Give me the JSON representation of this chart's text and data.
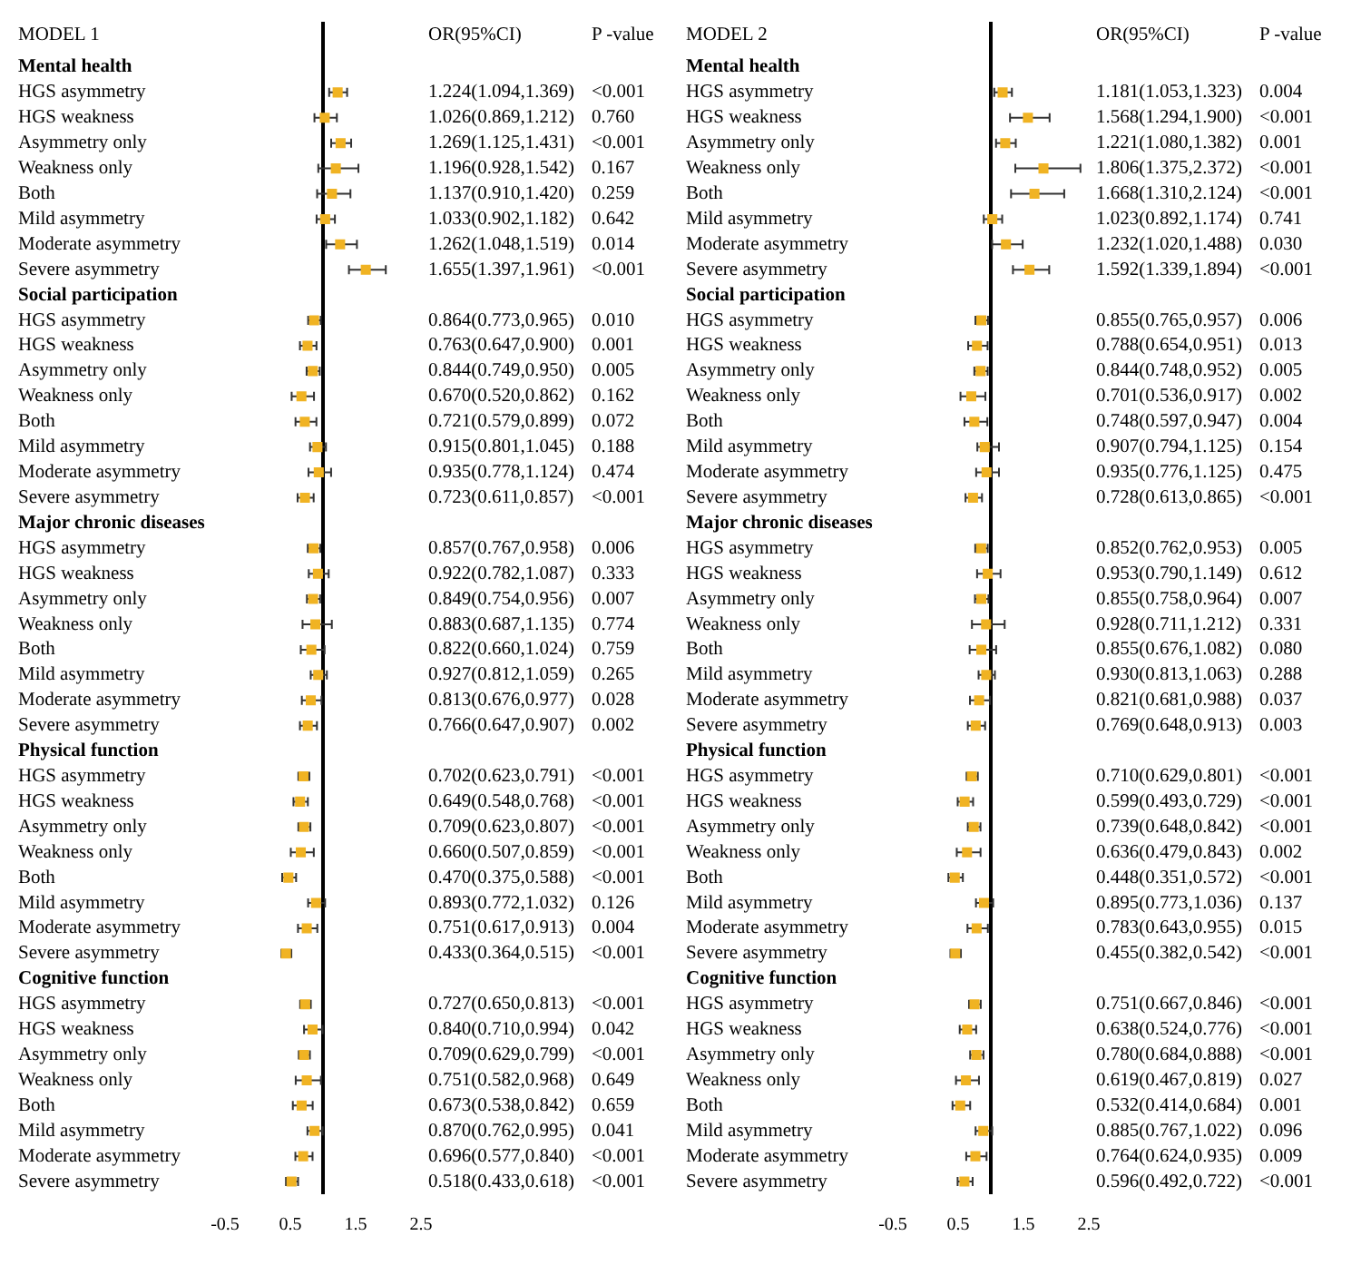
{
  "chart_data": [
    {
      "type": "scatter",
      "title": "MODEL 1",
      "orientation": "horizontal",
      "marker": "square",
      "color": "#f0b323",
      "categories": [
        "Mental health",
        "HGS asymmetry",
        "HGS weakness",
        "Asymmetry only",
        "Weakness only",
        "Both",
        "Mild asymmetry",
        "Moderate asymmetry",
        "Severe asymmetry",
        "Social participation",
        "HGS asymmetry",
        "HGS weakness",
        "Asymmetry only",
        "Weakness only",
        "Both",
        "Mild asymmetry",
        "Moderate asymmetry",
        "Severe asymmetry",
        "Major chronic diseases",
        "HGS asymmetry",
        "HGS weakness",
        "Asymmetry only",
        "Weakness only",
        "Both",
        "Mild asymmetry",
        "Moderate asymmetry",
        "Severe asymmetry",
        "Physical function",
        "HGS asymmetry",
        "HGS weakness",
        "Asymmetry only",
        "Weakness only",
        "Both",
        "Mild asymmetry",
        "Moderate asymmetry",
        "Severe asymmetry",
        "Cognitive function",
        "HGS asymmetry",
        "HGS weakness",
        "Asymmetry only",
        "Weakness only",
        "Both",
        "Mild asymmetry",
        "Moderate asymmetry",
        "Severe asymmetry"
      ],
      "values": [
        null,
        1.224,
        1.026,
        1.269,
        1.196,
        1.137,
        1.033,
        1.262,
        1.655,
        null,
        0.864,
        0.763,
        0.844,
        0.67,
        0.721,
        0.915,
        0.935,
        0.723,
        null,
        0.857,
        0.922,
        0.849,
        0.883,
        0.822,
        0.927,
        0.813,
        0.766,
        null,
        0.702,
        0.649,
        0.709,
        0.66,
        0.47,
        0.893,
        0.751,
        0.433,
        null,
        0.727,
        0.84,
        0.709,
        0.751,
        0.673,
        0.87,
        0.696,
        0.518
      ],
      "errors": [
        null,
        [
          1.094,
          1.369
        ],
        [
          0.869,
          1.212
        ],
        [
          1.125,
          1.431
        ],
        [
          0.928,
          1.542
        ],
        [
          0.91,
          1.42
        ],
        [
          0.902,
          1.182
        ],
        [
          1.048,
          1.519
        ],
        [
          1.397,
          1.961
        ],
        null,
        [
          0.773,
          0.965
        ],
        [
          0.647,
          0.9
        ],
        [
          0.749,
          0.95
        ],
        [
          0.52,
          0.862
        ],
        [
          0.579,
          0.899
        ],
        [
          0.801,
          1.045
        ],
        [
          0.778,
          1.124
        ],
        [
          0.611,
          0.857
        ],
        null,
        [
          0.767,
          0.958
        ],
        [
          0.782,
          1.087
        ],
        [
          0.754,
          0.956
        ],
        [
          0.687,
          1.135
        ],
        [
          0.66,
          1.024
        ],
        [
          0.812,
          1.059
        ],
        [
          0.676,
          0.977
        ],
        [
          0.647,
          0.907
        ],
        null,
        [
          0.623,
          0.791
        ],
        [
          0.548,
          0.768
        ],
        [
          0.623,
          0.807
        ],
        [
          0.507,
          0.859
        ],
        [
          0.375,
          0.588
        ],
        [
          0.772,
          1.032
        ],
        [
          0.617,
          0.913
        ],
        [
          0.364,
          0.515
        ],
        null,
        [
          0.65,
          0.813
        ],
        [
          0.71,
          0.994
        ],
        [
          0.629,
          0.799
        ],
        [
          0.582,
          0.968
        ],
        [
          0.538,
          0.842
        ],
        [
          0.762,
          0.995
        ],
        [
          0.577,
          0.84
        ],
        [
          0.433,
          0.618
        ]
      ],
      "value_labels": [
        null,
        "1.224(1.094,1.369)",
        "1.026(0.869,1.212)",
        "1.269(1.125,1.431)",
        "1.196(0.928,1.542)",
        "1.137(0.910,1.420)",
        "1.033(0.902,1.182)",
        "1.262(1.048,1.519)",
        "1.655(1.397,1.961)",
        null,
        "0.864(0.773,0.965)",
        "0.763(0.647,0.900)",
        "0.844(0.749,0.950)",
        "0.670(0.520,0.862)",
        "0.721(0.579,0.899)",
        "0.915(0.801,1.045)",
        "0.935(0.778,1.124)",
        "0.723(0.611,0.857)",
        null,
        "0.857(0.767,0.958)",
        "0.922(0.782,1.087)",
        "0.849(0.754,0.956)",
        "0.883(0.687,1.135)",
        "0.822(0.660,1.024)",
        "0.927(0.812,1.059)",
        "0.813(0.676,0.977)",
        "0.766(0.647,0.907)",
        null,
        "0.702(0.623,0.791)",
        "0.649(0.548,0.768)",
        "0.709(0.623,0.807)",
        "0.660(0.507,0.859)",
        "0.470(0.375,0.588)",
        "0.893(0.772,1.032)",
        "0.751(0.617,0.913)",
        "0.433(0.364,0.515)",
        null,
        "0.727(0.650,0.813)",
        "0.840(0.710,0.994)",
        "0.709(0.629,0.799)",
        "0.751(0.582,0.968)",
        "0.673(0.538,0.842)",
        "0.870(0.762,0.995)",
        "0.696(0.577,0.840)",
        "0.518(0.433,0.618)"
      ],
      "annotations": [
        "OR(95%CI)",
        "P -value",
        "<0.001",
        "0.760",
        "<0.001",
        "0.167",
        "0.259",
        "0.642",
        "0.014",
        "<0.001",
        "0.010",
        "0.001",
        "0.005",
        "0.162",
        "0.072",
        "0.188",
        "0.474",
        "<0.001",
        "0.006",
        "0.333",
        "0.007",
        "0.774",
        "0.759",
        "0.265",
        "0.028",
        "0.002",
        "<0.001",
        "<0.001",
        "<0.001",
        "<0.001",
        "<0.001",
        "0.126",
        "0.004",
        "<0.001",
        "<0.001",
        "0.042",
        "<0.001",
        "0.649",
        "0.659",
        "0.041",
        "<0.001",
        "<0.001"
      ],
      "xlim": [
        -0.5,
        2.5
      ],
      "xticks": [
        -0.5,
        0.5,
        1.5,
        2.5
      ],
      "ref_lines": [
        {
          "axis": "x",
          "value": 1,
          "color": "#000000"
        }
      ]
    },
    {
      "type": "scatter",
      "title": "MODEL 2",
      "orientation": "horizontal",
      "marker": "square",
      "color": "#f0b323",
      "categories": [
        "Mental health",
        "HGS asymmetry",
        "HGS weakness",
        "Asymmetry only",
        "Weakness only",
        "Both",
        "Mild asymmetry",
        "Moderate asymmetry",
        "Severe asymmetry",
        "Social participation",
        "HGS asymmetry",
        "HGS weakness",
        "Asymmetry only",
        "Weakness only",
        "Both",
        "Mild asymmetry",
        "Moderate asymmetry",
        "Severe asymmetry",
        "Major chronic diseases",
        "HGS asymmetry",
        "HGS weakness",
        "Asymmetry only",
        "Weakness only",
        "Both",
        "Mild asymmetry",
        "Moderate asymmetry",
        "Severe asymmetry",
        "Physical function",
        "HGS asymmetry",
        "HGS weakness",
        "Asymmetry only",
        "Weakness only",
        "Both",
        "Mild asymmetry",
        "Moderate asymmetry",
        "Severe asymmetry",
        "Cognitive function",
        "HGS asymmetry",
        "HGS weakness",
        "Asymmetry only",
        "Weakness only",
        "Both",
        "Mild asymmetry",
        "Moderate asymmetry",
        "Severe asymmetry"
      ],
      "values": [
        null,
        1.181,
        1.568,
        1.221,
        1.806,
        1.668,
        1.023,
        1.232,
        1.592,
        null,
        0.855,
        0.788,
        0.844,
        0.701,
        0.748,
        0.907,
        0.935,
        0.728,
        null,
        0.852,
        0.953,
        0.855,
        0.928,
        0.855,
        0.93,
        0.821,
        0.769,
        null,
        0.71,
        0.599,
        0.739,
        0.636,
        0.448,
        0.895,
        0.783,
        0.455,
        null,
        0.751,
        0.638,
        0.78,
        0.619,
        0.532,
        0.885,
        0.764,
        0.596
      ],
      "errors": [
        null,
        [
          1.053,
          1.323
        ],
        [
          1.294,
          1.9
        ],
        [
          1.08,
          1.382
        ],
        [
          1.375,
          2.372
        ],
        [
          1.31,
          2.124
        ],
        [
          0.892,
          1.174
        ],
        [
          1.02,
          1.488
        ],
        [
          1.339,
          1.894
        ],
        null,
        [
          0.765,
          0.957
        ],
        [
          0.654,
          0.951
        ],
        [
          0.748,
          0.952
        ],
        [
          0.536,
          0.917
        ],
        [
          0.597,
          0.947
        ],
        [
          0.794,
          1.125
        ],
        [
          0.776,
          1.125
        ],
        [
          0.613,
          0.865
        ],
        null,
        [
          0.762,
          0.953
        ],
        [
          0.79,
          1.149
        ],
        [
          0.758,
          0.964
        ],
        [
          0.711,
          1.212
        ],
        [
          0.676,
          1.082
        ],
        [
          0.813,
          1.063
        ],
        [
          0.681,
          0.988
        ],
        [
          0.648,
          0.913
        ],
        null,
        [
          0.629,
          0.801
        ],
        [
          0.493,
          0.729
        ],
        [
          0.648,
          0.842
        ],
        [
          0.479,
          0.843
        ],
        [
          0.351,
          0.572
        ],
        [
          0.773,
          1.036
        ],
        [
          0.643,
          0.955
        ],
        [
          0.382,
          0.542
        ],
        null,
        [
          0.667,
          0.846
        ],
        [
          0.524,
          0.776
        ],
        [
          0.684,
          0.888
        ],
        [
          0.467,
          0.819
        ],
        [
          0.414,
          0.684
        ],
        [
          0.767,
          1.022
        ],
        [
          0.624,
          0.935
        ],
        [
          0.492,
          0.722
        ]
      ],
      "value_labels": [
        null,
        "1.181(1.053,1.323)",
        "1.568(1.294,1.900)",
        "1.221(1.080,1.382)",
        "1.806(1.375,2.372)",
        "1.668(1.310,2.124)",
        "1.023(0.892,1.174)",
        "1.232(1.020,1.488)",
        "1.592(1.339,1.894)",
        null,
        "0.855(0.765,0.957)",
        "0.788(0.654,0.951)",
        "0.844(0.748,0.952)",
        "0.701(0.536,0.917)",
        "0.748(0.597,0.947)",
        "0.907(0.794,1.125)",
        "0.935(0.776,1.125)",
        "0.728(0.613,0.865)",
        null,
        "0.852(0.762,0.953)",
        "0.953(0.790,1.149)",
        "0.855(0.758,0.964)",
        "0.928(0.711,1.212)",
        "0.855(0.676,1.082)",
        "0.930(0.813,1.063)",
        "0.821(0.681,0.988)",
        "0.769(0.648,0.913)",
        null,
        "0.710(0.629,0.801)",
        "0.599(0.493,0.729)",
        "0.739(0.648,0.842)",
        "0.636(0.479,0.843)",
        "0.448(0.351,0.572)",
        "0.895(0.773,1.036)",
        "0.783(0.643,0.955)",
        "0.455(0.382,0.542)",
        null,
        "0.751(0.667,0.846)",
        "0.638(0.524,0.776)",
        "0.780(0.684,0.888)",
        "0.619(0.467,0.819)",
        "0.532(0.414,0.684)",
        "0.885(0.767,1.022)",
        "0.764(0.624,0.935)",
        "0.596(0.492,0.722)"
      ],
      "annotations": [
        "OR(95%CI)",
        "P -value",
        "0.004",
        "<0.001",
        "0.001",
        "<0.001",
        "<0.001",
        "0.741",
        "0.030",
        "<0.001",
        "0.006",
        "0.013",
        "0.005",
        "0.002",
        "0.004",
        "0.154",
        "0.475",
        "<0.001",
        "0.005",
        "0.612",
        "0.007",
        "0.331",
        "0.080",
        "0.288",
        "0.037",
        "0.003",
        "<0.001",
        "<0.001",
        "<0.001",
        "0.002",
        "<0.001",
        "0.137",
        "0.015",
        "<0.001",
        "<0.001",
        "<0.001",
        "<0.001",
        "0.027",
        "0.001",
        "0.096",
        "0.009",
        "<0.001"
      ],
      "xlim": [
        -0.5,
        2.5
      ],
      "xticks": [
        -0.5,
        0.5,
        1.5,
        2.5
      ],
      "ref_lines": [
        {
          "axis": "x",
          "value": 1,
          "color": "#000000"
        }
      ]
    }
  ]
}
